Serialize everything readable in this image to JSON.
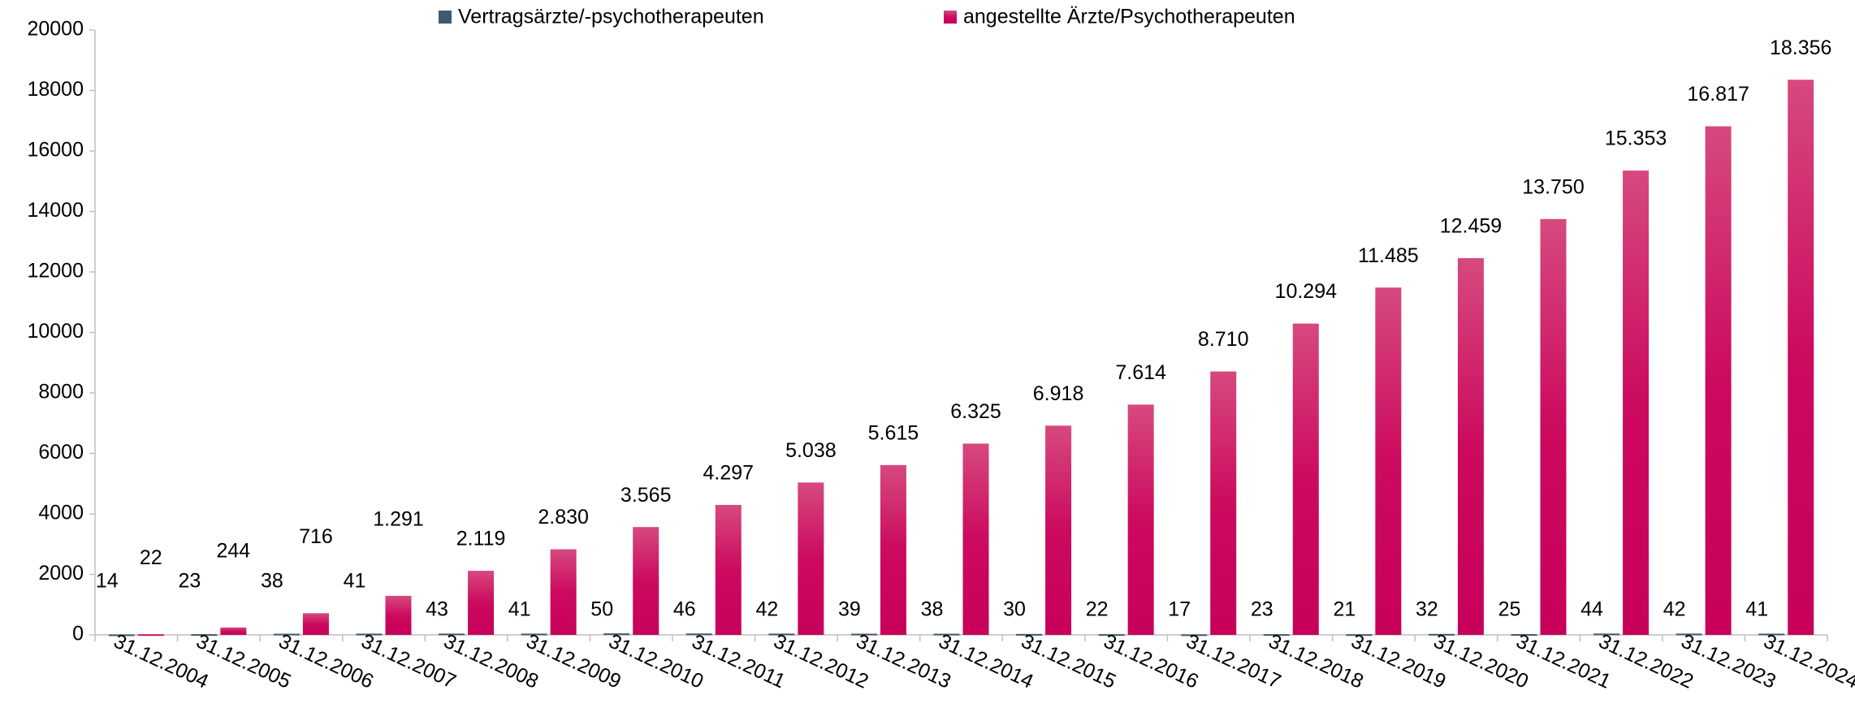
{
  "chart_data": {
    "type": "bar",
    "categories": [
      "31.12.2004",
      "31.12.2005",
      "31.12.2006",
      "31.12.2007",
      "31.12.2008",
      "31.12.2009",
      "31.12.2010",
      "31.12.2011",
      "31.12.2012",
      "31.12.2013",
      "31.12.2014",
      "31.12.2015",
      "31.12.2016",
      "31.12.2017",
      "31.12.2018",
      "31.12.2019",
      "31.12.2020",
      "31.12.2021",
      "31.12.2022",
      "31.12.2023",
      "31.12.2024"
    ],
    "series": [
      {
        "name": "Vertragsärzte/-psychotherapeuten",
        "color": "#3f5a6e",
        "values": [
          14,
          23,
          38,
          41,
          43,
          41,
          50,
          46,
          42,
          39,
          38,
          30,
          22,
          17,
          23,
          21,
          32,
          25,
          44,
          42,
          41
        ]
      },
      {
        "name": "angestellte Ärzte/Psychotherapeuten",
        "color": "#cc0a5e",
        "values": [
          22,
          244,
          716,
          1291,
          2119,
          2830,
          3565,
          4297,
          5038,
          5615,
          6325,
          6918,
          7614,
          8710,
          10294,
          11485,
          12459,
          13750,
          15353,
          16817,
          18356
        ],
        "value_labels": [
          "22",
          "244",
          "716",
          "1.291",
          "2.119",
          "2.830",
          "3.565",
          "4.297",
          "5.038",
          "5.615",
          "6.325",
          "6.918",
          "7.614",
          "8.710",
          "10.294",
          "11.485",
          "12.459",
          "13.750",
          "15.353",
          "16.817",
          "18.356"
        ]
      }
    ],
    "ylim": [
      0,
      20000
    ],
    "yticks": [
      0,
      2000,
      4000,
      6000,
      8000,
      10000,
      12000,
      14000,
      16000,
      18000,
      20000
    ],
    "grid": false,
    "legend": "top"
  }
}
